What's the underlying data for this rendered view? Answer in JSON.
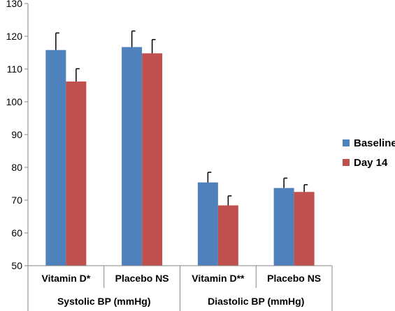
{
  "chart_data": {
    "type": "bar",
    "title": "",
    "xlabel": "",
    "ylabel": "",
    "ylim": [
      50,
      130
    ],
    "yticks": [
      50,
      60,
      70,
      80,
      90,
      100,
      110,
      120,
      130
    ],
    "grid": false,
    "legend_position": "right",
    "categories": [
      "Vitamin D*",
      "Placebo NS",
      "Vitamin D**",
      "Placebo NS"
    ],
    "groups": [
      {
        "label": "Systolic BP (mmHg)",
        "categories": [
          "Vitamin D*",
          "Placebo NS"
        ]
      },
      {
        "label": "Diastolic BP (mmHg)",
        "categories": [
          "Vitamin D**",
          "Placebo NS"
        ]
      }
    ],
    "series": [
      {
        "name": "Baseline",
        "color": "#4f81bd",
        "values": [
          115.8,
          116.7,
          75.4,
          73.7
        ],
        "errors": [
          5.2,
          4.9,
          3.1,
          3.0
        ]
      },
      {
        "name": "Day 14",
        "color": "#c0504d",
        "values": [
          106.2,
          114.8,
          68.4,
          72.5
        ],
        "errors": [
          3.9,
          4.2,
          2.9,
          2.2
        ]
      }
    ]
  }
}
